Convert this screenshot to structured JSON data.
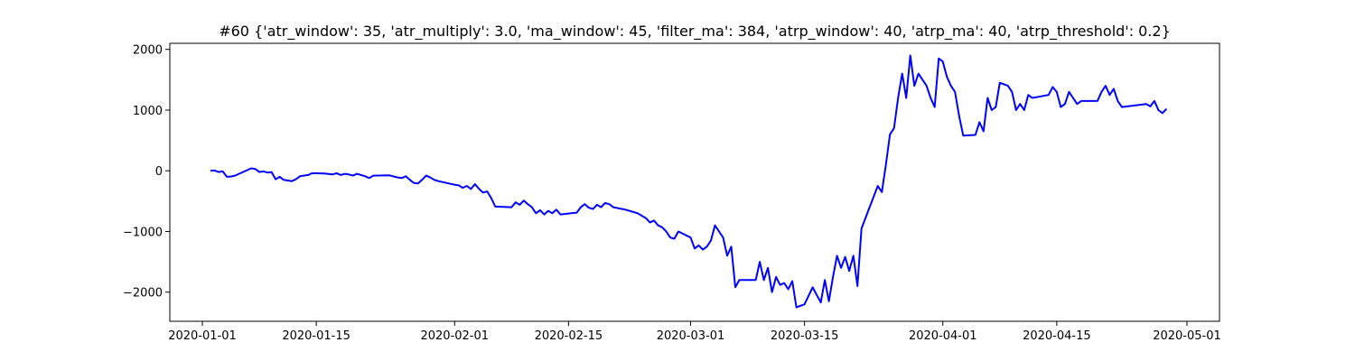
{
  "chart_data": {
    "type": "line",
    "title": "#60 {'atr_window': 35, 'atr_multiply': 3.0, 'ma_window': 45, 'filter_ma': 384, 'atrp_window': 40, 'atrp_ma': 40, 'atrp_threshold': 0.2}",
    "xlabel": "",
    "ylabel": "",
    "x_axis_type": "date",
    "xlim": [
      "2019-12-28",
      "2020-05-05"
    ],
    "ylim": [
      -2480,
      2100
    ],
    "x_ticks": [
      "2020-01-01",
      "2020-01-15",
      "2020-02-01",
      "2020-02-15",
      "2020-03-01",
      "2020-03-15",
      "2020-04-01",
      "2020-04-15",
      "2020-05-01"
    ],
    "y_ticks": [
      -2000,
      -1000,
      0,
      1000,
      2000
    ],
    "y_tick_labels": [
      "−2000",
      "−1000",
      "0",
      "1000",
      "2000"
    ],
    "grid": false,
    "legend": "none",
    "series": [
      {
        "color": "#0000ff",
        "points": [
          [
            "2020-01-02",
            0
          ],
          [
            "2020-01-02T12:00",
            5
          ],
          [
            "2020-01-03",
            -20
          ],
          [
            "2020-01-03T12:00",
            -10
          ],
          [
            "2020-01-04",
            -100
          ],
          [
            "2020-01-04T12:00",
            -95
          ],
          [
            "2020-01-05",
            -80
          ],
          [
            "2020-01-07",
            40
          ],
          [
            "2020-01-07T12:00",
            30
          ],
          [
            "2020-01-08",
            -20
          ],
          [
            "2020-01-08T12:00",
            -10
          ],
          [
            "2020-01-09",
            -30
          ],
          [
            "2020-01-09T12:00",
            -20
          ],
          [
            "2020-01-10",
            -140
          ],
          [
            "2020-01-10T12:00",
            -100
          ],
          [
            "2020-01-11",
            -150
          ],
          [
            "2020-01-12",
            -170
          ],
          [
            "2020-01-12T12:00",
            -140
          ],
          [
            "2020-01-13",
            -90
          ],
          [
            "2020-01-14",
            -70
          ],
          [
            "2020-01-14T12:00",
            -40
          ],
          [
            "2020-01-16",
            -45
          ],
          [
            "2020-01-17",
            -60
          ],
          [
            "2020-01-17T12:00",
            -40
          ],
          [
            "2020-01-18",
            -70
          ],
          [
            "2020-01-18T12:00",
            -50
          ],
          [
            "2020-01-19",
            -60
          ],
          [
            "2020-01-19T12:00",
            -80
          ],
          [
            "2020-01-20",
            -50
          ],
          [
            "2020-01-21",
            -90
          ],
          [
            "2020-01-21T12:00",
            -120
          ],
          [
            "2020-01-22",
            -80
          ],
          [
            "2020-01-24",
            -75
          ],
          [
            "2020-01-25",
            -110
          ],
          [
            "2020-01-25T12:00",
            -120
          ],
          [
            "2020-01-26",
            -90
          ],
          [
            "2020-01-26T12:00",
            -150
          ],
          [
            "2020-01-27",
            -200
          ],
          [
            "2020-01-27T12:00",
            -210
          ],
          [
            "2020-01-28",
            -150
          ],
          [
            "2020-01-28T12:00",
            -80
          ],
          [
            "2020-01-29",
            -110
          ],
          [
            "2020-01-29T12:00",
            -150
          ],
          [
            "2020-01-30",
            -170
          ],
          [
            "2020-02-01",
            -230
          ],
          [
            "2020-02-01T12:00",
            -240
          ],
          [
            "2020-02-02",
            -280
          ],
          [
            "2020-02-02T12:00",
            -250
          ],
          [
            "2020-02-03",
            -300
          ],
          [
            "2020-02-03T12:00",
            -220
          ],
          [
            "2020-02-04",
            -300
          ],
          [
            "2020-02-04T12:00",
            -360
          ],
          [
            "2020-02-05",
            -340
          ],
          [
            "2020-02-05T12:00",
            -450
          ],
          [
            "2020-02-06",
            -590
          ],
          [
            "2020-02-08",
            -600
          ],
          [
            "2020-02-08T12:00",
            -520
          ],
          [
            "2020-02-09",
            -560
          ],
          [
            "2020-02-09T12:00",
            -490
          ],
          [
            "2020-02-10",
            -550
          ],
          [
            "2020-02-10T12:00",
            -600
          ],
          [
            "2020-02-11",
            -700
          ],
          [
            "2020-02-11T12:00",
            -650
          ],
          [
            "2020-02-12",
            -720
          ],
          [
            "2020-02-12T12:00",
            -660
          ],
          [
            "2020-02-13",
            -700
          ],
          [
            "2020-02-13T12:00",
            -640
          ],
          [
            "2020-02-14",
            -720
          ],
          [
            "2020-02-16",
            -690
          ],
          [
            "2020-02-16T12:00",
            -600
          ],
          [
            "2020-02-17",
            -550
          ],
          [
            "2020-02-17T12:00",
            -610
          ],
          [
            "2020-02-18",
            -630
          ],
          [
            "2020-02-18T12:00",
            -560
          ],
          [
            "2020-02-19",
            -600
          ],
          [
            "2020-02-19T12:00",
            -530
          ],
          [
            "2020-02-20",
            -550
          ],
          [
            "2020-02-20T12:00",
            -600
          ],
          [
            "2020-02-22",
            -640
          ],
          [
            "2020-02-23",
            -680
          ],
          [
            "2020-02-23T12:00",
            -700
          ],
          [
            "2020-02-24",
            -740
          ],
          [
            "2020-02-24T12:00",
            -780
          ],
          [
            "2020-02-25",
            -850
          ],
          [
            "2020-02-25T12:00",
            -820
          ],
          [
            "2020-02-26",
            -900
          ],
          [
            "2020-02-26T12:00",
            -930
          ],
          [
            "2020-02-27",
            -1000
          ],
          [
            "2020-02-27T12:00",
            -1100
          ],
          [
            "2020-02-28",
            -1120
          ],
          [
            "2020-02-28T12:00",
            -1000
          ],
          [
            "2020-03-01",
            -1100
          ],
          [
            "2020-03-01T12:00",
            -1280
          ],
          [
            "2020-03-02",
            -1230
          ],
          [
            "2020-03-02T12:00",
            -1300
          ],
          [
            "2020-03-03",
            -1250
          ],
          [
            "2020-03-03T12:00",
            -1150
          ],
          [
            "2020-03-04",
            -900
          ],
          [
            "2020-03-04T12:00",
            -1000
          ],
          [
            "2020-03-05",
            -1100
          ],
          [
            "2020-03-05T12:00",
            -1400
          ],
          [
            "2020-03-06",
            -1250
          ],
          [
            "2020-03-06T12:00",
            -1920
          ],
          [
            "2020-03-07",
            -1800
          ],
          [
            "2020-03-09",
            -1800
          ],
          [
            "2020-03-09T12:00",
            -1500
          ],
          [
            "2020-03-10",
            -1800
          ],
          [
            "2020-03-10T12:00",
            -1600
          ],
          [
            "2020-03-11",
            -2000
          ],
          [
            "2020-03-11T12:00",
            -1750
          ],
          [
            "2020-03-12",
            -1880
          ],
          [
            "2020-03-12T12:00",
            -1850
          ],
          [
            "2020-03-13",
            -1950
          ],
          [
            "2020-03-13T12:00",
            -1820
          ],
          [
            "2020-03-14",
            -2250
          ],
          [
            "2020-03-15",
            -2200
          ],
          [
            "2020-03-16",
            -1920
          ],
          [
            "2020-03-17",
            -2170
          ],
          [
            "2020-03-17T12:00",
            -1800
          ],
          [
            "2020-03-18",
            -2150
          ],
          [
            "2020-03-18T12:00",
            -1750
          ],
          [
            "2020-03-19",
            -1400
          ],
          [
            "2020-03-19T12:00",
            -1600
          ],
          [
            "2020-03-20",
            -1420
          ],
          [
            "2020-03-20T12:00",
            -1650
          ],
          [
            "2020-03-21",
            -1400
          ],
          [
            "2020-03-21T12:00",
            -1900
          ],
          [
            "2020-03-22",
            -950
          ],
          [
            "2020-03-24",
            -250
          ],
          [
            "2020-03-24T12:00",
            -350
          ],
          [
            "2020-03-25",
            100
          ],
          [
            "2020-03-25T12:00",
            600
          ],
          [
            "2020-03-26",
            700
          ],
          [
            "2020-03-26T12:00",
            1200
          ],
          [
            "2020-03-27",
            1600
          ],
          [
            "2020-03-27T12:00",
            1200
          ],
          [
            "2020-03-28",
            1900
          ],
          [
            "2020-03-28T12:00",
            1400
          ],
          [
            "2020-03-29",
            1600
          ],
          [
            "2020-03-29T12:00",
            1500
          ],
          [
            "2020-03-30",
            1400
          ],
          [
            "2020-03-30T12:00",
            1200
          ],
          [
            "2020-03-31",
            1050
          ],
          [
            "2020-03-31T12:00",
            1850
          ],
          [
            "2020-04-01",
            1800
          ],
          [
            "2020-04-01T12:00",
            1550
          ],
          [
            "2020-04-02",
            1400
          ],
          [
            "2020-04-02T12:00",
            1300
          ],
          [
            "2020-04-03",
            900
          ],
          [
            "2020-04-03T12:00",
            580
          ],
          [
            "2020-04-05",
            590
          ],
          [
            "2020-04-05T12:00",
            800
          ],
          [
            "2020-04-06",
            650
          ],
          [
            "2020-04-06T12:00",
            1200
          ],
          [
            "2020-04-07",
            1000
          ],
          [
            "2020-04-07T12:00",
            1050
          ],
          [
            "2020-04-08",
            1450
          ],
          [
            "2020-04-09",
            1400
          ],
          [
            "2020-04-09T12:00",
            1300
          ],
          [
            "2020-04-10",
            1000
          ],
          [
            "2020-04-10T12:00",
            1100
          ],
          [
            "2020-04-11",
            1000
          ],
          [
            "2020-04-11T12:00",
            1250
          ],
          [
            "2020-04-12",
            1200
          ],
          [
            "2020-04-14",
            1250
          ],
          [
            "2020-04-14T12:00",
            1380
          ],
          [
            "2020-04-15",
            1300
          ],
          [
            "2020-04-15T12:00",
            1050
          ],
          [
            "2020-04-16",
            1100
          ],
          [
            "2020-04-16T12:00",
            1300
          ],
          [
            "2020-04-17",
            1200
          ],
          [
            "2020-04-17T12:00",
            1100
          ],
          [
            "2020-04-18",
            1150
          ],
          [
            "2020-04-20",
            1150
          ],
          [
            "2020-04-20T12:00",
            1300
          ],
          [
            "2020-04-21",
            1400
          ],
          [
            "2020-04-21T12:00",
            1250
          ],
          [
            "2020-04-22",
            1350
          ],
          [
            "2020-04-22T12:00",
            1150
          ],
          [
            "2020-04-23",
            1050
          ],
          [
            "2020-04-26",
            1100
          ],
          [
            "2020-04-26T12:00",
            1060
          ],
          [
            "2020-04-27",
            1150
          ],
          [
            "2020-04-27T12:00",
            1000
          ],
          [
            "2020-04-28",
            950
          ],
          [
            "2020-04-28T12:00",
            1020
          ]
        ]
      }
    ]
  }
}
